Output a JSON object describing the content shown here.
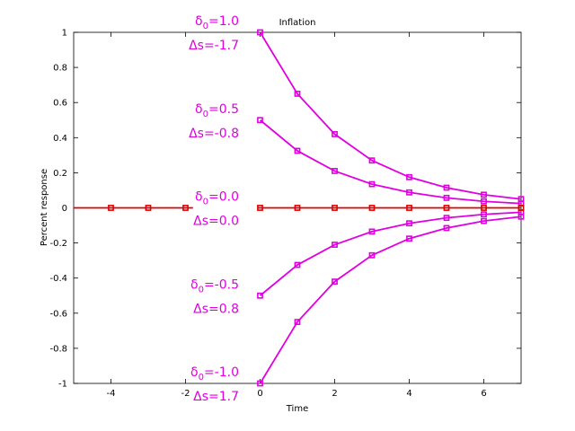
{
  "chart_data": {
    "type": "line",
    "title": "Inflation",
    "xlabel": "Time",
    "ylabel": "Percent response",
    "xlim": [
      -5,
      7
    ],
    "ylim": [
      -1,
      1
    ],
    "xticks": [
      "-4",
      "-2",
      "0",
      "2",
      "4",
      "6"
    ],
    "yticks": [
      "1",
      "0.8",
      "0.6",
      "0.4",
      "0.2",
      "0",
      "-0.2",
      "-0.4",
      "-0.6",
      "-0.8",
      "-1"
    ],
    "grid": false,
    "colors": {
      "impulse": "#e000e0",
      "baseline": "#e00000"
    },
    "baseline": {
      "pre": {
        "x": [
          -5,
          -4,
          -3,
          -2,
          -1.8
        ],
        "y": [
          0,
          0,
          0,
          0,
          0
        ],
        "markers": [
          -4,
          -3,
          -2
        ]
      },
      "post": {
        "x": [
          -0.05,
          7
        ],
        "y": [
          0,
          0
        ],
        "markers": [
          0,
          1,
          2,
          3,
          4,
          5,
          6,
          7
        ]
      }
    },
    "series": [
      {
        "x": [
          0,
          1,
          2,
          3,
          4,
          5,
          6,
          7
        ],
        "values": [
          1.0,
          0.65,
          0.42,
          0.27,
          0.175,
          0.115,
          0.075,
          0.05
        ]
      },
      {
        "x": [
          0,
          1,
          2,
          3,
          4,
          5,
          6,
          7
        ],
        "values": [
          0.5,
          0.325,
          0.21,
          0.135,
          0.088,
          0.057,
          0.037,
          0.025
        ]
      },
      {
        "x": [
          0,
          1,
          2,
          3,
          4,
          5,
          6,
          7
        ],
        "values": [
          -0.5,
          -0.325,
          -0.21,
          -0.135,
          -0.088,
          -0.057,
          -0.037,
          -0.025
        ]
      },
      {
        "x": [
          0,
          1,
          2,
          3,
          4,
          5,
          6,
          7
        ],
        "values": [
          -1.0,
          -0.65,
          -0.42,
          -0.27,
          -0.175,
          -0.115,
          -0.075,
          -0.05
        ]
      }
    ],
    "annotations": [
      {
        "delta_sub": "0",
        "delta_val": "=1.0",
        "ds": "Δs=-1.7"
      },
      {
        "delta_sub": "0",
        "delta_val": "=0.5",
        "ds": "Δs=-0.8"
      },
      {
        "delta_sub": "0",
        "delta_val": "=0.0",
        "ds": "Δs=0.0"
      },
      {
        "delta_sub": "0",
        "delta_val": "=-0.5",
        "ds": "Δs=0.8"
      },
      {
        "delta_sub": "0",
        "delta_val": "=-1.0",
        "ds": "Δs=1.7"
      }
    ]
  }
}
